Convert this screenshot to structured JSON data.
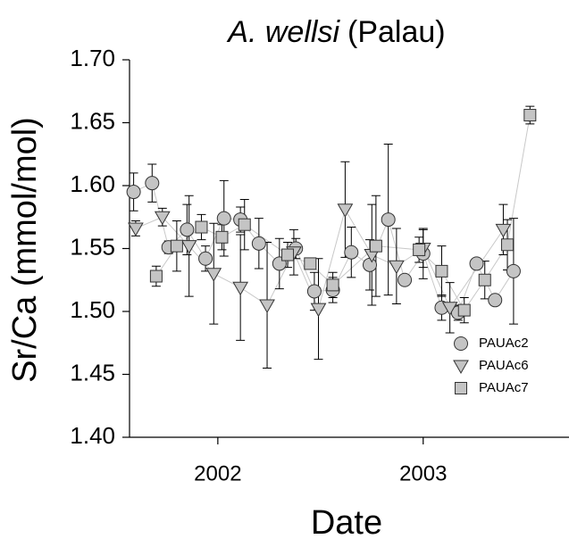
{
  "chart_data": {
    "type": "scatter",
    "title": [
      "A. wellsi",
      "(Palau)"
    ],
    "x_label": "Date",
    "y_label": "Sr/Ca (mmol/mol)",
    "xlim": [
      2001.57,
      2003.71
    ],
    "xticks": [
      2002,
      2003
    ],
    "ylim": [
      1.4,
      1.7
    ],
    "yticks": [
      {
        "value": 1.4,
        "label": "1.40"
      },
      1.45,
      {
        "value": 1.5,
        "label": "1.50"
      },
      1.55,
      {
        "value": 1.6,
        "label": "1.60"
      },
      1.65,
      {
        "value": 1.7,
        "label": "1.70"
      }
    ],
    "legend": "lower right",
    "line_color": "#c8c8c8",
    "series": [
      {
        "name": "PAUAc2",
        "marker": "circle",
        "color": "#c4c4c4",
        "x": [
          2001.59,
          2001.68,
          2001.76,
          2001.85,
          2001.94,
          2002.03,
          2002.11,
          2002.2,
          2002.3,
          2002.38,
          2002.47,
          2002.56,
          2002.65,
          2002.74,
          2002.83,
          2002.91,
          2003.0,
          2003.09,
          2003.17,
          2003.26,
          2003.35,
          2003.44
        ],
        "values": [
          1.595,
          1.602,
          1.551,
          1.565,
          1.542,
          1.574,
          1.573,
          1.554,
          1.538,
          1.55,
          1.516,
          1.517,
          1.547,
          1.537,
          1.573,
          1.525,
          1.546,
          1.503,
          1.499,
          1.538,
          1.509,
          1.532
        ],
        "errors": [
          0.015,
          0.015,
          0.005,
          0.02,
          0.01,
          0.03,
          0.01,
          0.02,
          0.02,
          0.008,
          0.015,
          0.01,
          0.02,
          0.02,
          0.06,
          0.004,
          0.02,
          0.01,
          0.006,
          0.003,
          0.003,
          0.042
        ]
      },
      {
        "name": "PAUAc6",
        "marker": "triangle",
        "color": "#c4c4c4",
        "x": [
          2001.6,
          2001.73,
          2001.86,
          2001.98,
          2002.11,
          2002.24,
          2002.37,
          2002.49,
          2002.62,
          2002.75,
          2002.87,
          2003.0,
          2003.13,
          2003.39
        ],
        "values": [
          1.566,
          1.575,
          1.552,
          1.53,
          1.519,
          1.505,
          1.547,
          1.502,
          1.581,
          1.545,
          1.536,
          1.55,
          1.503,
          1.565
        ],
        "errors": [
          0.006,
          0.007,
          0.04,
          0.04,
          0.042,
          0.05,
          0.018,
          0.04,
          0.038,
          0.04,
          0.03,
          0.015,
          0.02,
          0.02
        ]
      },
      {
        "name": "PAUAc7",
        "marker": "square",
        "color": "#c4c4c4",
        "x": [
          2001.7,
          2001.8,
          2001.92,
          2002.02,
          2002.13,
          2002.34,
          2002.45,
          2002.56,
          2002.77,
          2002.98,
          2003.09,
          2003.2,
          2003.3,
          2003.41,
          2003.52
        ],
        "values": [
          1.528,
          1.552,
          1.567,
          1.559,
          1.569,
          1.545,
          1.538,
          1.521,
          1.552,
          1.549,
          1.532,
          1.501,
          1.525,
          1.553,
          1.656
        ],
        "errors": [
          0.008,
          0.02,
          0.01,
          0.01,
          0.02,
          0.01,
          0.004,
          0.01,
          0.04,
          0.01,
          0.02,
          0.01,
          0.015,
          0.02,
          0.007
        ]
      }
    ]
  }
}
